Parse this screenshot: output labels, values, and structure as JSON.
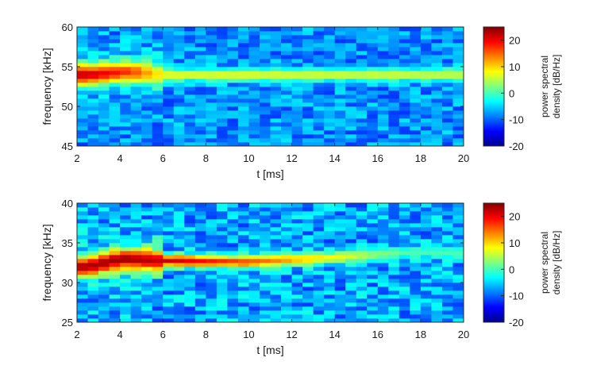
{
  "chart_data": [
    {
      "type": "heatmap",
      "title": "",
      "xlabel": "t [ms]",
      "ylabel": "frequency [kHz]",
      "xlim": [
        2,
        20
      ],
      "ylim": [
        45,
        60
      ],
      "x_ticks": [
        2,
        4,
        6,
        8,
        10,
        12,
        14,
        16,
        18,
        20
      ],
      "y_ticks": [
        45,
        50,
        55,
        60
      ],
      "x_tick_labels": [
        "2",
        "4",
        "6",
        "8",
        "10",
        "12",
        "14",
        "16",
        "18",
        "20"
      ],
      "y_tick_labels": [
        "45",
        "50",
        "55",
        "60"
      ],
      "colorbar": {
        "label_lines": [
          "power spectral",
          "density [dB/Hz]"
        ],
        "range": [
          -20,
          25
        ],
        "ticks": [
          -20,
          -10,
          0,
          10,
          20
        ],
        "tick_labels": [
          "-20",
          "-10",
          "0",
          "10",
          "20"
        ],
        "colormap": "jet"
      },
      "ridge": {
        "points": [
          [
            2.5,
            54.0
          ],
          [
            4.5,
            54.4
          ],
          [
            6,
            54.0
          ],
          [
            20,
            54.0
          ]
        ],
        "level_db": [
          22,
          17,
          8,
          6
        ]
      },
      "noise_level_db": [
        -12,
        -4
      ]
    },
    {
      "type": "heatmap",
      "title": "",
      "xlabel": "t [ms]",
      "ylabel": "frequency [kHz]",
      "xlim": [
        2,
        20
      ],
      "ylim": [
        25,
        40
      ],
      "x_ticks": [
        2,
        4,
        6,
        8,
        10,
        12,
        14,
        16,
        18,
        20
      ],
      "y_ticks": [
        25,
        30,
        35,
        40
      ],
      "x_tick_labels": [
        "2",
        "4",
        "6",
        "8",
        "10",
        "12",
        "14",
        "16",
        "18",
        "20"
      ],
      "y_tick_labels": [
        "25",
        "30",
        "35",
        "40"
      ],
      "colorbar": {
        "label_lines": [
          "power spectral",
          "density [dB/Hz]"
        ],
        "range": [
          -20,
          25
        ],
        "ticks": [
          -20,
          -10,
          0,
          10,
          20
        ],
        "tick_labels": [
          "-20",
          "-10",
          "0",
          "10",
          "20"
        ],
        "colormap": "jet"
      },
      "ridge": {
        "points": [
          [
            2.5,
            32.0
          ],
          [
            4.0,
            33.0
          ],
          [
            6,
            32.8
          ],
          [
            10,
            32.6
          ],
          [
            14,
            33.2
          ],
          [
            17.5,
            33.8
          ]
        ],
        "level_db": [
          23,
          24,
          22,
          16,
          8,
          0
        ]
      },
      "noise_level_db": [
        -12,
        -2
      ]
    }
  ]
}
